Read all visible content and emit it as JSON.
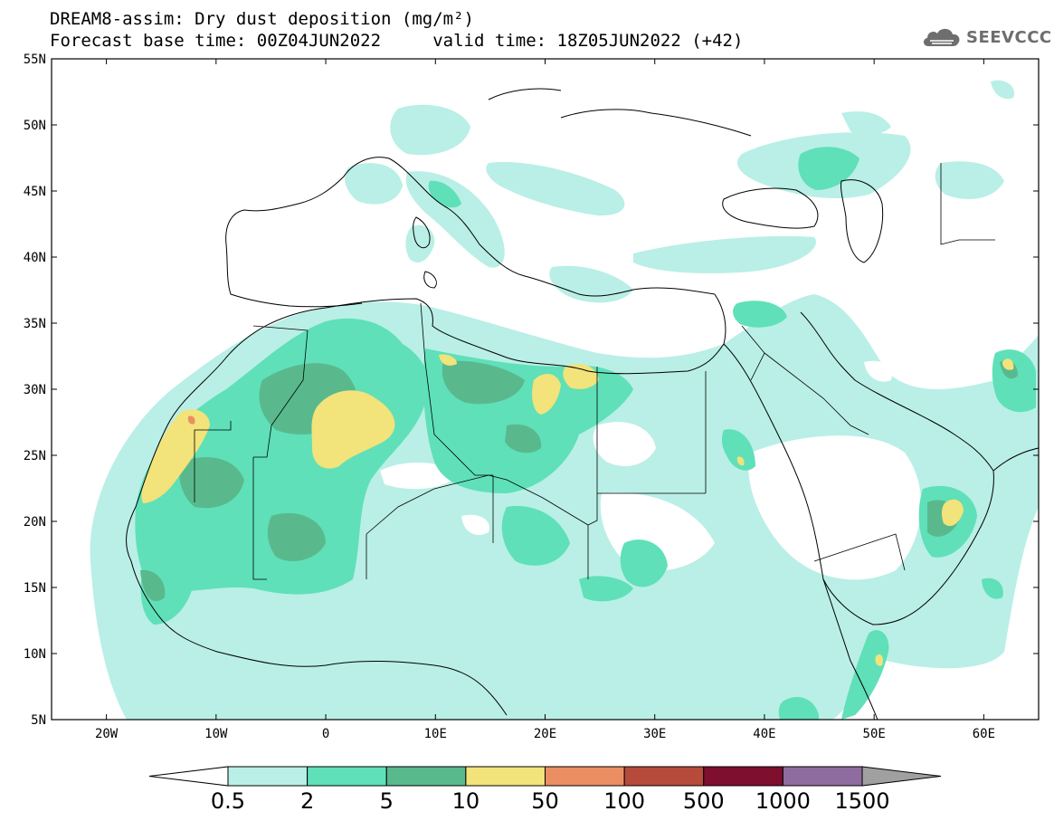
{
  "header": {
    "title_line1": "DREAM8-assim: Dry dust deposition (mg/m²)",
    "title_line2": "Forecast base time: 00Z04JUN2022     valid time: 18Z05JUN2022 (+42)",
    "logo_text": "SEEVCCC"
  },
  "map": {
    "lon_range": [
      -25,
      65
    ],
    "lat_range": [
      5,
      55
    ],
    "lat_ticks": [
      {
        "value": 55,
        "label": "55N"
      },
      {
        "value": 50,
        "label": "50N"
      },
      {
        "value": 45,
        "label": "45N"
      },
      {
        "value": 40,
        "label": "40N"
      },
      {
        "value": 35,
        "label": "35N"
      },
      {
        "value": 30,
        "label": "30N"
      },
      {
        "value": 25,
        "label": "25N"
      },
      {
        "value": 20,
        "label": "20N"
      },
      {
        "value": 15,
        "label": "15N"
      },
      {
        "value": 10,
        "label": "10N"
      },
      {
        "value": 5,
        "label": "5N"
      }
    ],
    "lon_ticks": [
      {
        "value": -20,
        "label": "20W"
      },
      {
        "value": -10,
        "label": "10W"
      },
      {
        "value": 0,
        "label": "0"
      },
      {
        "value": 10,
        "label": "10E"
      },
      {
        "value": 20,
        "label": "20E"
      },
      {
        "value": 30,
        "label": "30E"
      },
      {
        "value": 40,
        "label": "40E"
      },
      {
        "value": 50,
        "label": "50E"
      },
      {
        "value": 60,
        "label": "60E"
      }
    ]
  },
  "colorbar": {
    "colors": [
      "#ffffff",
      "#b9efe6",
      "#5fe0b9",
      "#59b98d",
      "#f2e37a",
      "#eb8e63",
      "#b64b3c",
      "#7e0f2d",
      "#8f6c9f",
      "#a0a0a0"
    ],
    "labels": [
      "0.5",
      "2",
      "5",
      "10",
      "50",
      "100",
      "500",
      "1000",
      "1500"
    ]
  }
}
